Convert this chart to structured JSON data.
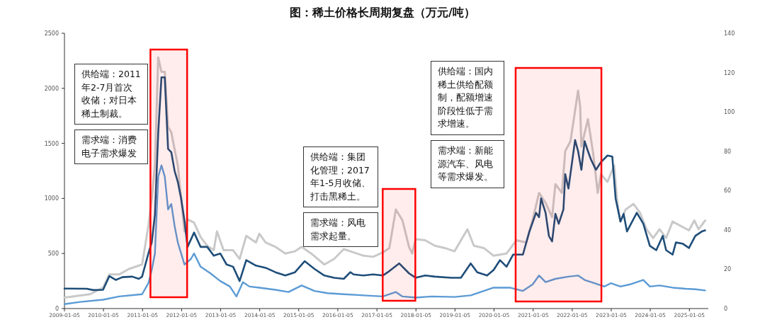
{
  "chart_data": {
    "type": "line",
    "title": "图：稀土价格长周期复盘（万元/吨）",
    "xlim": [
      "2009-01-05",
      "2025-07"
    ],
    "xticks": [
      "2009-01-05",
      "2010-01-05",
      "2011-01-05",
      "2012-01-05",
      "2013-01-05",
      "2014-01-05",
      "2015-01-05",
      "2016-01-05",
      "2017-01-05",
      "2018-01-05",
      "2019-01-05",
      "2020-01-05",
      "2021-01-05",
      "2022-01-05",
      "2023-01-05",
      "2024-01-05",
      "2025-01-05"
    ],
    "ylim": [
      0,
      2500
    ],
    "yticks": [
      0,
      500,
      1000,
      1500,
      2000,
      2500
    ],
    "y2lim": [
      0,
      140
    ],
    "y2ticks": [
      0,
      20,
      40,
      60,
      80,
      100,
      120,
      140
    ],
    "grid": false,
    "marker": "none",
    "line_style": "solid",
    "series": [
      {
        "color": "#c9c9c9",
        "x": [
          "2009-01-05",
          "2009-09",
          "2010-01",
          "2010-03",
          "2010-06",
          "2010-09",
          "2011-01",
          "2011-03",
          "2011-04",
          "2011-05",
          "2011-06",
          "2011-07",
          "2011-08",
          "2011-09",
          "2011-10",
          "2011-12",
          "2012-01",
          "2012-02",
          "2012-03",
          "2012-05",
          "2012-07",
          "2012-09",
          "2012-11",
          "2012-12",
          "2013-02",
          "2013-05",
          "2013-07",
          "2013-09",
          "2013-12",
          "2014-01",
          "2014-03",
          "2014-06",
          "2014-09",
          "2014-12",
          "2015-02",
          "2015-05",
          "2015-09",
          "2015-12",
          "2016-03",
          "2016-06",
          "2016-09",
          "2016-12",
          "2017-03",
          "2017-05",
          "2017-07",
          "2017-09",
          "2017-11",
          "2017-12",
          "2018-01",
          "2018-04",
          "2018-07",
          "2018-10",
          "2019-01",
          "2019-05",
          "2019-07",
          "2019-10",
          "2020-01",
          "2020-05",
          "2020-08",
          "2020-11",
          "2021-01",
          "2021-03",
          "2021-05",
          "2021-07",
          "2021-08",
          "2021-10",
          "2021-11",
          "2021-12-20",
          "2022-03",
          "2022-03-20",
          "2022-04",
          "2022-06",
          "2022-07-20",
          "2022-09",
          "2022-10",
          "2022-12",
          "2023-02",
          "2023-03",
          "2023-04",
          "2023-05-20",
          "2023-08",
          "2023-10",
          "2023-12",
          "2024-02",
          "2024-04",
          "2024-06",
          "2024-08",
          "2025-01",
          "2025-02-20",
          "2025-04",
          "2025-06"
        ],
        "values": [
          100,
          130,
          190,
          310,
          310,
          360,
          400,
          750,
          1000,
          1300,
          2280,
          2150,
          2150,
          1650,
          1600,
          1300,
          1000,
          700,
          810,
          780,
          650,
          570,
          530,
          700,
          530,
          530,
          450,
          660,
          600,
          680,
          600,
          560,
          500,
          520,
          560,
          500,
          400,
          450,
          540,
          510,
          480,
          470,
          510,
          550,
          900,
          800,
          560,
          500,
          630,
          620,
          570,
          550,
          520,
          720,
          570,
          550,
          480,
          500,
          620,
          600,
          810,
          1050,
          960,
          830,
          1130,
          1050,
          1430,
          1520,
          1980,
          1840,
          1470,
          1720,
          1410,
          1050,
          1220,
          1150,
          1300,
          980,
          790,
          900,
          950,
          870,
          720,
          640,
          720,
          640,
          790,
          710,
          800,
          720,
          800
        ]
      },
      {
        "color": "#1f4e79",
        "x": [
          "2009-01-05",
          "2009-08",
          "2009-10",
          "2010-01",
          "2010-03",
          "2010-05",
          "2010-07",
          "2010-10",
          "2010-12",
          "2011-01",
          "2011-03",
          "2011-04",
          "2011-05",
          "2011-06",
          "2011-07",
          "2011-08",
          "2011-09",
          "2011-10",
          "2011-11",
          "2011-12",
          "2012-01",
          "2012-02",
          "2012-03",
          "2012-05",
          "2012-07",
          "2012-09",
          "2012-11",
          "2013-01",
          "2013-03",
          "2013-05",
          "2013-07",
          "2013-09",
          "2013-12",
          "2014-03",
          "2014-06",
          "2014-09",
          "2014-12",
          "2015-03",
          "2015-06",
          "2015-09",
          "2015-12",
          "2016-03",
          "2016-05",
          "2016-06",
          "2016-09",
          "2016-12",
          "2017-03",
          "2017-05",
          "2017-08",
          "2017-11",
          "2018-01",
          "2018-04",
          "2018-07",
          "2018-12",
          "2019-03",
          "2019-06",
          "2019-08",
          "2019-11",
          "2020-01",
          "2020-03",
          "2020-05",
          "2020-07",
          "2020-10",
          "2020-12",
          "2021-02",
          "2021-03",
          "2021-03-20",
          "2021-05",
          "2021-06",
          "2021-07",
          "2021-08",
          "2021-09",
          "2021-10-15",
          "2021-11",
          "2021-12",
          "2022-02",
          "2022-03",
          "2022-04",
          "2022-05",
          "2022-06",
          "2022-07",
          "2022-08-15",
          "2022-10",
          "2022-12",
          "2023-01-15",
          "2023-02-15",
          "2023-04",
          "2023-05",
          "2023-06",
          "2023-09",
          "2023-11",
          "2024-01",
          "2024-03",
          "2024-05",
          "2024-06",
          "2024-08",
          "2024-09",
          "2024-11",
          "2025-01",
          "2025-03",
          "2025-05",
          "2025-06"
        ],
        "values": [
          182,
          180,
          168,
          170,
          295,
          260,
          285,
          290,
          270,
          290,
          500,
          600,
          850,
          1600,
          2100,
          2100,
          1450,
          1420,
          1250,
          1150,
          1000,
          800,
          560,
          690,
          560,
          560,
          480,
          500,
          400,
          380,
          250,
          440,
          390,
          370,
          330,
          300,
          330,
          430,
          360,
          300,
          280,
          270,
          330,
          310,
          300,
          310,
          300,
          340,
          410,
          320,
          280,
          300,
          290,
          280,
          280,
          410,
          330,
          300,
          350,
          440,
          380,
          490,
          490,
          700,
          870,
          830,
          1000,
          870,
          660,
          610,
          860,
          770,
          900,
          1220,
          1090,
          1530,
          1430,
          1260,
          1520,
          1430,
          1350,
          1260,
          1330,
          1390,
          1380,
          1000,
          790,
          860,
          700,
          870,
          770,
          570,
          530,
          660,
          530,
          490,
          600,
          590,
          550,
          660,
          700,
          710
        ]
      },
      {
        "color": "#5b9bd5",
        "x": [
          "2009-01-05",
          "2009-06",
          "2010-01",
          "2010-06",
          "2011-01",
          "2011-03",
          "2011-04",
          "2011-05",
          "2011-06",
          "2011-07",
          "2011-08",
          "2011-09",
          "2011-10",
          "2011-11",
          "2011-12",
          "2012-01",
          "2012-02",
          "2012-04",
          "2012-05",
          "2012-07",
          "2012-10",
          "2013-01",
          "2013-04",
          "2013-06",
          "2013-08",
          "2013-10",
          "2014-01",
          "2014-06",
          "2014-10",
          "2015-02",
          "2015-06",
          "2015-10",
          "2016-03",
          "2016-09",
          "2017-03",
          "2017-07",
          "2017-09",
          "2018-01",
          "2018-06",
          "2019-01",
          "2019-06",
          "2020-01",
          "2020-06",
          "2020-10",
          "2021-01",
          "2021-03",
          "2021-05",
          "2021-08",
          "2021-12",
          "2022-03",
          "2022-05",
          "2022-08",
          "2022-11",
          "2023-01",
          "2023-04",
          "2023-07",
          "2023-10",
          "2023-11",
          "2024-01",
          "2024-04",
          "2024-08",
          "2024-12",
          "2025-03",
          "2025-06"
        ],
        "values": [
          40,
          60,
          80,
          110,
          130,
          230,
          350,
          500,
          1200,
          1300,
          1200,
          900,
          950,
          750,
          600,
          500,
          400,
          450,
          500,
          380,
          320,
          250,
          200,
          110,
          240,
          200,
          190,
          170,
          150,
          210,
          160,
          140,
          130,
          120,
          110,
          150,
          110,
          100,
          110,
          105,
          120,
          190,
          190,
          160,
          220,
          300,
          240,
          270,
          290,
          300,
          260,
          230,
          200,
          230,
          200,
          220,
          250,
          260,
          200,
          210,
          190,
          180,
          175,
          165
        ]
      }
    ],
    "bands": [
      {
        "axis": "x",
        "from": "2011-03-20",
        "to": "2012-02-26",
        "color": "#ff0000"
      },
      {
        "axis": "x",
        "from": "2017-02-28",
        "to": "2017-12-30",
        "color": "#ff0000"
      },
      {
        "axis": "x",
        "from": "2020-07-25",
        "to": "2022-10-05",
        "color": "#ff0000"
      }
    ],
    "annotations": [
      "供给端：2011年2-7月首次收储；对日本稀土制裁。",
      "需求端：消费电子需求爆发",
      "供给端：集团化管理；2017年1-5月收储、打击黑稀土。",
      "需求端：风电需求起量。",
      "供给端：国内稀土供给配额制，配额增速阶段性低于需求增速。",
      "需求端：新能源汽车、风电等需求爆发。"
    ]
  }
}
